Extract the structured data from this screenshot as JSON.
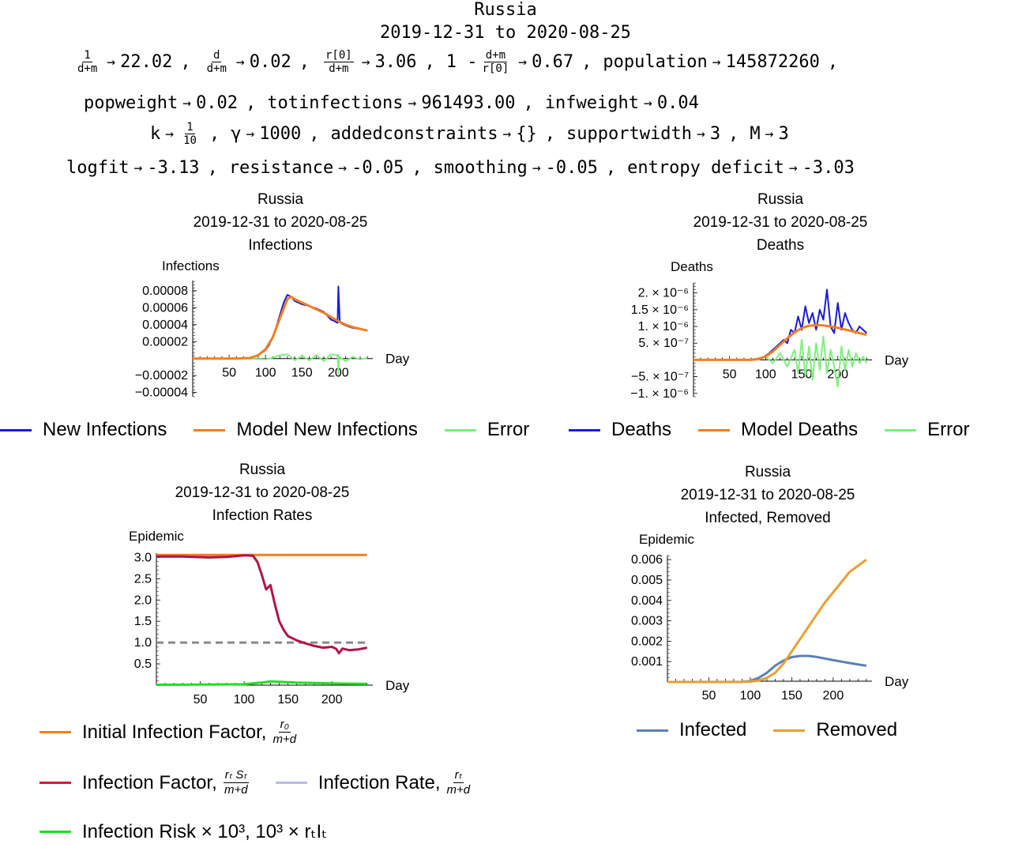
{
  "header": {
    "country": "Russia",
    "date_range": "2019-12-31 to 2020-08-25",
    "params": {
      "p1_num": "1",
      "p1_den": "d+m",
      "p1_val": "22.02",
      "p2_num": "d",
      "p2_den": "d+m",
      "p2_val": "0.02",
      "p3_num": "r[0]",
      "p3_den": "d+m",
      "p3_val": "3.06",
      "p4_prefix": "1 -",
      "p4_num": "d+m",
      "p4_den": "r[0]",
      "p4_val": "0.67",
      "population_key": "population",
      "population_val": "145872260",
      "popweight_key": "popweight",
      "popweight_val": "0.02",
      "totinfections_key": "totinfections",
      "totinfections_val": "961493.00",
      "infweight_key": "infweight",
      "infweight_val": "0.04",
      "k_key": "k",
      "k_num": "1",
      "k_den": "10",
      "gamma_key": "γ",
      "gamma_val": "1000",
      "addedconstraints_key": "addedconstraints",
      "addedconstraints_val": "{}",
      "supportwidth_key": "supportwidth",
      "supportwidth_val": "3",
      "M_key": "M",
      "M_val": "3",
      "logfit_key": "logfit",
      "logfit_val": "-3.13",
      "resistance_key": "resistance",
      "resistance_val": "-0.05",
      "smoothing_key": "smoothing",
      "smoothing_val": "-0.05",
      "entropy_key": "entropy deficit",
      "entropy_val": "-3.03"
    }
  },
  "chart_data": [
    {
      "id": "infections",
      "type": "line",
      "title": [
        "Russia",
        "2019-12-31 to 2020-08-25",
        "Infections"
      ],
      "ylabel": "Infections",
      "xlabel": "Day",
      "xlim": [
        0,
        243
      ],
      "ylim": [
        -4.5e-05,
        9.2e-05
      ],
      "x_ticks": [
        50,
        100,
        150,
        200
      ],
      "y_ticks": [
        8e-05,
        6e-05,
        4e-05,
        2e-05,
        -2e-05,
        -4e-05
      ],
      "y_tick_labels": [
        "0.00008",
        "0.00006",
        "0.00004",
        "0.00002",
        "−0.00002",
        "−0.00004"
      ],
      "series": [
        {
          "name": "New Infections",
          "color": "#1a1adb",
          "x": [
            0,
            30,
            60,
            80,
            90,
            100,
            105,
            110,
            115,
            120,
            125,
            130,
            135,
            140,
            150,
            160,
            170,
            180,
            190,
            195,
            199,
            200,
            202,
            205,
            210,
            220,
            230,
            240
          ],
          "y": [
            0,
            0,
            0,
            1e-06,
            4e-06,
            1e-05,
            1.6e-05,
            2.6e-05,
            3.8e-05,
            5.2e-05,
            6.6e-05,
            7.5e-05,
            7.3e-05,
            6.8e-05,
            6.4e-05,
            6.2e-05,
            5.9e-05,
            5.5e-05,
            4.6e-05,
            4.4e-05,
            4.2e-05,
            8.5e-05,
            4.3e-05,
            4.1e-05,
            3.9e-05,
            3.6e-05,
            3.5e-05,
            3.3e-05
          ]
        },
        {
          "name": "Model New Infections",
          "color": "#f08020",
          "x": [
            0,
            30,
            60,
            80,
            90,
            100,
            110,
            120,
            130,
            135,
            140,
            150,
            160,
            170,
            180,
            190,
            200,
            210,
            220,
            230,
            240
          ],
          "y": [
            0,
            0,
            0,
            8e-07,
            4e-06,
            1.1e-05,
            2.5e-05,
            4.8e-05,
            7e-05,
            7.3e-05,
            7e-05,
            6.6e-05,
            6.2e-05,
            5.8e-05,
            5.4e-05,
            4.9e-05,
            4.4e-05,
            4e-05,
            3.7e-05,
            3.5e-05,
            3.3e-05
          ]
        },
        {
          "name": "Error",
          "color": "#7df07d",
          "x": [
            0,
            80,
            100,
            110,
            120,
            130,
            140,
            150,
            160,
            170,
            180,
            190,
            199,
            200,
            201,
            210,
            220,
            230,
            240
          ],
          "y": [
            0,
            -2e-07,
            -1e-06,
            1e-06,
            4e-06,
            5e-06,
            -2e-06,
            3e-06,
            -2e-06,
            4e-06,
            -3e-06,
            5e-06,
            4e-06,
            -1.8e-05,
            2e-06,
            -3e-06,
            2e-06,
            -1e-06,
            1e-06
          ]
        }
      ]
    },
    {
      "id": "deaths",
      "type": "line",
      "title": [
        "Russia",
        "2019-12-31 to 2020-08-25",
        "Deaths"
      ],
      "ylabel": "Deaths",
      "xlabel": "Day",
      "xlim": [
        0,
        243
      ],
      "ylim": [
        -1.1e-06,
        2.3e-06
      ],
      "x_ticks": [
        50,
        100,
        150,
        200
      ],
      "y_ticks": [
        2e-06,
        1.5e-06,
        1e-06,
        5e-07,
        -5e-07,
        -1e-06
      ],
      "y_tick_labels": [
        "2. × 10⁻⁶",
        "1.5 × 10⁻⁶",
        "1. × 10⁻⁶",
        "5. × 10⁻⁷",
        "−5. × 10⁻⁷",
        "−1. × 10⁻⁶"
      ],
      "series": [
        {
          "name": "Deaths",
          "color": "#1a1adb",
          "x": [
            0,
            80,
            95,
            105,
            115,
            125,
            130,
            135,
            140,
            145,
            150,
            155,
            160,
            165,
            170,
            175,
            180,
            185,
            190,
            195,
            200,
            205,
            210,
            215,
            220,
            225,
            230,
            235,
            240
          ],
          "y": [
            0,
            0,
            5e-08,
            2e-07,
            4e-07,
            6e-07,
            5e-07,
            9e-07,
            8e-07,
            1.3e-06,
            9e-07,
            1.6e-06,
            1.1e-06,
            1.4e-06,
            9e-07,
            1.5e-06,
            1.2e-06,
            2.1e-06,
            1e-06,
            8e-07,
            1.7e-06,
            9e-07,
            1.4e-06,
            1.1e-06,
            9e-07,
            8e-07,
            1e-06,
            9e-07,
            8e-07
          ]
        },
        {
          "name": "Model Deaths",
          "color": "#f08020",
          "x": [
            0,
            80,
            90,
            100,
            110,
            120,
            130,
            140,
            150,
            160,
            170,
            180,
            190,
            200,
            210,
            220,
            230,
            240
          ],
          "y": [
            0,
            0,
            3e-08,
            1e-07,
            2.5e-07,
            4.5e-07,
            6.5e-07,
            8.2e-07,
            9.5e-07,
            1.02e-06,
            1.04e-06,
            1.03e-06,
            1e-06,
            9.6e-07,
            9.1e-07,
            8.6e-07,
            8e-07,
            7.5e-07
          ]
        },
        {
          "name": "Error",
          "color": "#7df07d",
          "x": [
            0,
            90,
            100,
            110,
            120,
            130,
            140,
            145,
            150,
            155,
            160,
            165,
            170,
            175,
            180,
            185,
            190,
            195,
            200,
            205,
            210,
            215,
            220,
            225,
            230,
            235,
            240
          ],
          "y": [
            0,
            0,
            1e-07,
            -1e-07,
            2e-07,
            -2e-07,
            3e-07,
            -4e-07,
            6e-07,
            -5e-07,
            4e-07,
            -6e-07,
            5e-07,
            -3e-07,
            7e-07,
            -4e-07,
            3e-07,
            -2e-07,
            -8e-07,
            4e-07,
            -3e-07,
            3e-07,
            -2e-07,
            2e-07,
            -1e-07,
            1e-07,
            -1e-07
          ]
        }
      ]
    },
    {
      "id": "rates",
      "type": "line",
      "title": [
        "Russia",
        "2019-12-31 to 2020-08-25",
        "Infection Rates"
      ],
      "ylabel": "Epidemic",
      "xlabel": "Day",
      "xlim": [
        0,
        243
      ],
      "ylim": [
        0,
        3.1
      ],
      "x_ticks": [
        50,
        100,
        150,
        200
      ],
      "y_ticks": [
        3.0,
        2.5,
        2.0,
        1.5,
        1.0,
        0.5
      ],
      "y_tick_labels": [
        "3.0",
        "2.5",
        "2.0",
        "1.5",
        "1.0",
        "0.5"
      ],
      "reference_line": {
        "y": 1.0,
        "style": "dashed",
        "color": "#888888"
      },
      "series": [
        {
          "name": "Initial Infection Factor",
          "color": "#f08020",
          "x": [
            0,
            240
          ],
          "y": [
            3.06,
            3.06
          ]
        },
        {
          "name": "Infection Factor",
          "color": "#b0144a",
          "x": [
            0,
            30,
            60,
            80,
            100,
            110,
            115,
            120,
            125,
            130,
            135,
            140,
            145,
            150,
            155,
            160,
            170,
            180,
            190,
            200,
            205,
            208,
            212,
            220,
            230,
            240
          ],
          "y": [
            3.02,
            3.02,
            3.0,
            3.01,
            3.05,
            3.04,
            2.9,
            2.6,
            2.25,
            2.35,
            1.9,
            1.5,
            1.3,
            1.15,
            1.1,
            1.05,
            0.98,
            0.92,
            0.88,
            0.9,
            0.85,
            0.75,
            0.86,
            0.82,
            0.84,
            0.88
          ]
        },
        {
          "name": "Infection Risk",
          "color": "#20e020",
          "x": [
            0,
            100,
            110,
            120,
            130,
            140,
            150,
            160,
            180,
            200,
            220,
            240
          ],
          "y": [
            0.01,
            0.02,
            0.04,
            0.06,
            0.09,
            0.08,
            0.07,
            0.06,
            0.05,
            0.04,
            0.035,
            0.03
          ]
        }
      ]
    },
    {
      "id": "sir",
      "type": "line",
      "title": [
        "Russia",
        "2019-12-31 to 2020-08-25",
        "Infected, Removed"
      ],
      "ylabel": "Epidemic",
      "xlabel": "Day",
      "xlim": [
        0,
        243
      ],
      "ylim": [
        0,
        0.0062
      ],
      "x_ticks": [
        50,
        100,
        150,
        200
      ],
      "y_ticks": [
        0.006,
        0.005,
        0.004,
        0.003,
        0.002,
        0.001
      ],
      "y_tick_labels": [
        "0.006",
        "0.005",
        "0.004",
        "0.003",
        "0.002",
        "0.001"
      ],
      "series": [
        {
          "name": "Infected",
          "color": "#5b7fb8",
          "x": [
            0,
            90,
            100,
            110,
            120,
            130,
            140,
            150,
            160,
            170,
            180,
            190,
            200,
            210,
            220,
            230,
            240
          ],
          "y": [
            0,
            1e-05,
            5e-05,
            0.0002,
            0.00045,
            0.0008,
            0.00105,
            0.00122,
            0.00128,
            0.00128,
            0.00123,
            0.00115,
            0.00107,
            0.001,
            0.00093,
            0.00086,
            0.0008
          ]
        },
        {
          "name": "Removed",
          "color": "#e8a030",
          "x": [
            0,
            90,
            100,
            110,
            120,
            130,
            140,
            150,
            160,
            170,
            180,
            190,
            200,
            210,
            220,
            230,
            240
          ],
          "y": [
            0,
            5e-06,
            2e-05,
            7e-05,
            0.0002,
            0.00045,
            0.0009,
            0.0015,
            0.0021,
            0.0027,
            0.0033,
            0.0039,
            0.0044,
            0.0049,
            0.0054,
            0.0057,
            0.006
          ]
        }
      ]
    }
  ],
  "legends": {
    "infections": [
      {
        "label": "New Infections",
        "color": "#1a1adb"
      },
      {
        "label": "Model New Infections",
        "color": "#f08020"
      },
      {
        "label": "Error",
        "color": "#7df07d"
      }
    ],
    "deaths": [
      {
        "label": "Deaths",
        "color": "#1a1adb"
      },
      {
        "label": "Model Deaths",
        "color": "#f08020"
      },
      {
        "label": "Error",
        "color": "#7df07d"
      }
    ],
    "rates": {
      "initial_label": "Initial Infection Factor,",
      "initial_num": "r₀",
      "initial_den": "m+d",
      "initial_color": "#f08020",
      "factor_label": "Infection Factor,",
      "factor_num": "rₜ Sₜ",
      "factor_den": "m+d",
      "factor_color": "#d21a3a",
      "rate_label": "Infection Rate,",
      "rate_num": "rₜ",
      "rate_den": "m+d",
      "rate_color": "#b8bce8",
      "risk_label": "Infection Risk × 10³, 10³ × rₜIₜ",
      "risk_color": "#20e020"
    },
    "sir": [
      {
        "label": "Infected",
        "color": "#5b7fb8"
      },
      {
        "label": "Removed",
        "color": "#e8a030"
      }
    ]
  }
}
